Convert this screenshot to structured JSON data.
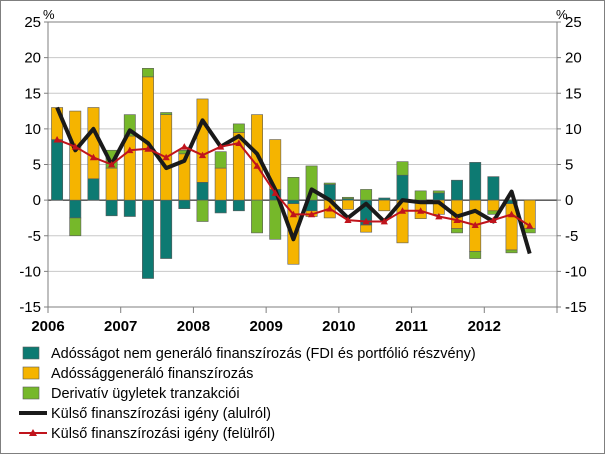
{
  "chart_data": {
    "type": "bar",
    "y_unit_left": "%",
    "y_unit_right": "%",
    "ylim": [
      -15,
      25
    ],
    "yticks": [
      -15,
      -10,
      -5,
      0,
      5,
      10,
      15,
      20,
      25
    ],
    "ytick_labels": [
      "-15",
      "-10",
      "-5",
      "0",
      "5",
      "10",
      "15",
      "20",
      "25"
    ],
    "grid": true,
    "legend_position": "bottom",
    "year_labels": [
      "2006",
      "2007",
      "2008",
      "2009",
      "2010",
      "2011",
      "2012"
    ],
    "quarters": [
      "2006 Q1",
      "2006 Q2",
      "2006 Q3",
      "2006 Q4",
      "2007 Q1",
      "2007 Q2",
      "2007 Q3",
      "2007 Q4",
      "2008 Q1",
      "2008 Q2",
      "2008 Q3",
      "2008 Q4",
      "2009 Q1",
      "2009 Q2",
      "2009 Q3",
      "2009 Q4",
      "2010 Q1",
      "2010 Q2",
      "2010 Q3",
      "2010 Q4",
      "2011 Q1",
      "2011 Q2",
      "2011 Q3",
      "2011 Q4",
      "2012 Q1",
      "2012 Q2",
      "2012 Q3"
    ],
    "series": [
      {
        "name": "Adósságot nem generáló finanszírozás (FDI és portfólió részvény)",
        "kind": "bar",
        "color": "#0d7a72",
        "values": [
          8.5,
          -2.5,
          3.0,
          -2.2,
          -2.3,
          -11.0,
          -8.2,
          -1.2,
          2.5,
          -1.8,
          -1.5,
          0,
          1.5,
          -0.5,
          -1.5,
          2.2,
          0.2,
          -3.5,
          0.3,
          3.5,
          -0.3,
          1.0,
          2.8,
          5.3,
          3.3,
          -0.5,
          0
        ]
      },
      {
        "name": "Adóssággeneráló finanszírozás",
        "kind": "bar",
        "color": "#f5b400",
        "values": [
          4.5,
          12.5,
          10.0,
          4.5,
          9.0,
          17.3,
          12.0,
          6.5,
          11.7,
          4.5,
          9.5,
          12.0,
          7.0,
          -8.5,
          -0.8,
          -2.5,
          -1.3,
          -1.0,
          -1.5,
          -6.0,
          -2.3,
          -2.0,
          -4.0,
          -7.2,
          -1.5,
          -6.5,
          -4.0
        ]
      },
      {
        "name": "Derivatív ügyletek tranzakciói",
        "kind": "bar",
        "color": "#76b82a",
        "values": [
          0,
          -2.5,
          0,
          2.5,
          3.0,
          1.2,
          0.3,
          0.5,
          -3.0,
          2.3,
          1.2,
          -4.6,
          -5.5,
          3.2,
          4.8,
          0.2,
          0.2,
          1.5,
          0,
          1.9,
          1.3,
          0.3,
          -0.6,
          -1.0,
          -0.5,
          -0.4,
          -0.6
        ]
      },
      {
        "name": "Külső finanszírozási igény (alulról)",
        "kind": "line",
        "color": "#1a1a1a",
        "values": [
          13.0,
          7.0,
          10.0,
          5.0,
          9.8,
          8.0,
          4.5,
          5.5,
          11.2,
          7.5,
          9.0,
          6.5,
          1.5,
          -5.5,
          1.5,
          0,
          -2.5,
          -0.5,
          -3.0,
          0,
          -0.3,
          -0.3,
          -2.3,
          -1.5,
          -3.0,
          1.2,
          -7.5
        ]
      },
      {
        "name": "Külső finanszírozási igény (felülről)",
        "kind": "line-marker",
        "color": "#c0141c",
        "values": [
          8.5,
          7.5,
          6.0,
          5.0,
          7.0,
          7.2,
          6.0,
          7.5,
          6.3,
          7.5,
          8.0,
          4.8,
          1.0,
          -2.0,
          -2.0,
          -1.2,
          -2.8,
          -3.0,
          -3.0,
          -1.5,
          -1.5,
          -2.3,
          -2.8,
          -3.5,
          -2.8,
          -2.0,
          -3.6
        ]
      }
    ]
  }
}
